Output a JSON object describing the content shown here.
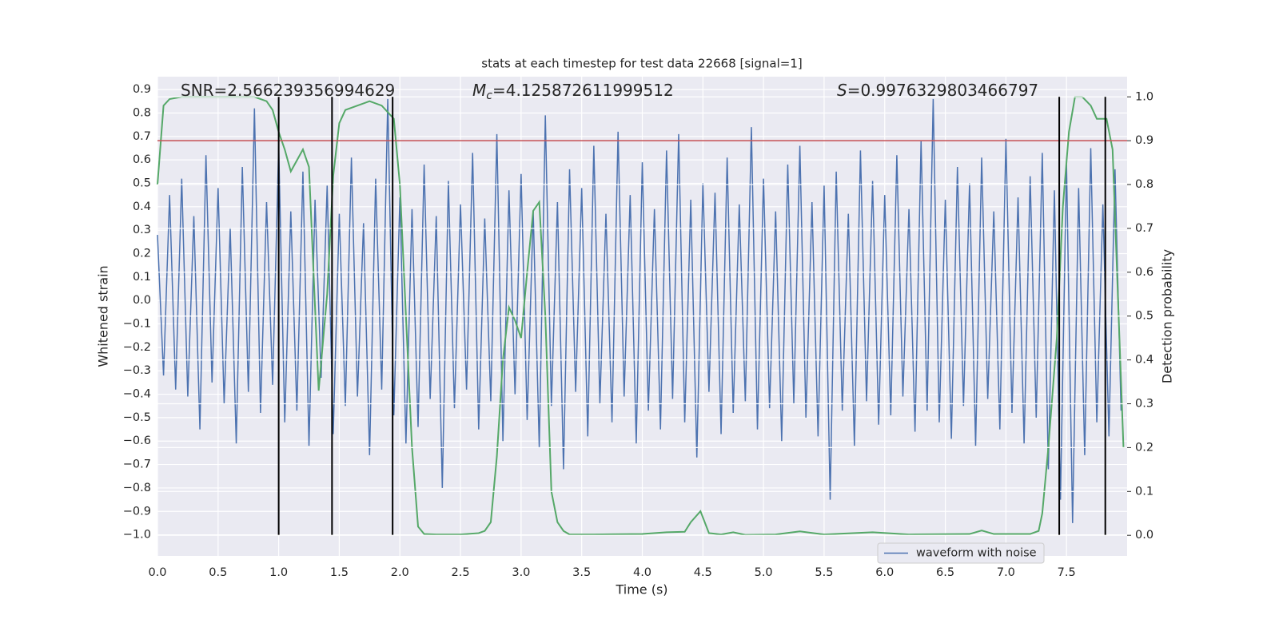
{
  "chart_data": {
    "type": "line",
    "title": "stats at each timestep for test data 22668 [signal=1]",
    "xlabel": "Time (s)",
    "ylabel": "Whitened strain",
    "y2label": "Detection probability",
    "xlim": [
      0,
      8.0
    ],
    "ylim": [
      -1.09,
      0.955
    ],
    "y2lim": [
      -0.047,
      1.046
    ],
    "xticks": [
      {
        "value": 0,
        "label": "0.0"
      },
      0.5,
      {
        "value": 1,
        "label": "1.0"
      },
      1.5,
      {
        "value": 2,
        "label": "2.0"
      },
      2.5,
      {
        "value": 3,
        "label": "3.0"
      },
      3.5,
      {
        "value": 4,
        "label": "4.0"
      },
      4.5,
      {
        "value": 5,
        "label": "5.0"
      },
      5.5,
      {
        "value": 6,
        "label": "6.0"
      },
      6.5,
      {
        "value": 7,
        "label": "7.0"
      },
      7.5
    ],
    "yticks": [
      {
        "value": -1,
        "label": "−1.0"
      },
      {
        "value": -0.9,
        "label": "−0.9"
      },
      {
        "value": -0.8,
        "label": "−0.8"
      },
      {
        "value": -0.7,
        "label": "−0.7"
      },
      {
        "value": -0.6,
        "label": "−0.6"
      },
      {
        "value": -0.5,
        "label": "−0.5"
      },
      {
        "value": -0.4,
        "label": "−0.4"
      },
      {
        "value": -0.3,
        "label": "−0.3"
      },
      {
        "value": -0.2,
        "label": "−0.2"
      },
      {
        "value": -0.1,
        "label": "−0.1"
      },
      {
        "value": 0,
        "label": "0.0"
      },
      0.1,
      0.2,
      0.3,
      0.4,
      0.5,
      0.6,
      0.7,
      0.8,
      0.9
    ],
    "y2ticks": [
      {
        "value": 0,
        "label": "0.0"
      },
      0.1,
      0.2,
      0.3,
      0.4,
      0.5,
      0.6,
      0.7,
      0.8,
      0.9,
      {
        "value": 1,
        "label": "1.0"
      }
    ],
    "grid": true,
    "legend": "lower right",
    "annotations": [
      [
        {
          "text": "SNR=2.566239356994629"
        }
      ],
      [
        {
          "text": "M",
          "style": "italic"
        },
        {
          "text": "c",
          "style": "sub"
        },
        {
          "text": "=4.125872611999512"
        }
      ],
      [
        {
          "text": "S",
          "style": "italic"
        },
        {
          "text": "=0.9976329803466797"
        }
      ]
    ],
    "vlines": {
      "color": "#000000",
      "x": [
        1.0,
        1.44,
        1.94,
        7.44,
        7.82
      ]
    },
    "hlines": [
      {
        "value": 0.9,
        "axis": "y2",
        "color": "#c44e52"
      }
    ],
    "series": [
      {
        "name": "waveform with noise",
        "color": "#4c72b0",
        "x": [
          0,
          0.05,
          0.1,
          0.15,
          0.2,
          0.25,
          0.3,
          0.35,
          0.4,
          0.45,
          0.5,
          0.55,
          0.6,
          0.65,
          0.7,
          0.75,
          0.8,
          0.85,
          0.9,
          0.95,
          1,
          1.05,
          1.1,
          1.15,
          1.2,
          1.25,
          1.3,
          1.35,
          1.4,
          1.45,
          1.5,
          1.55,
          1.6,
          1.65,
          1.7,
          1.75,
          1.8,
          1.85,
          1.9,
          1.95,
          2,
          2.05,
          2.1,
          2.15,
          2.2,
          2.25,
          2.3,
          2.35,
          2.4,
          2.45,
          2.5,
          2.55,
          2.6,
          2.65,
          2.7,
          2.75,
          2.8,
          2.85,
          2.9,
          2.95,
          3,
          3.05,
          3.1,
          3.15,
          3.2,
          3.25,
          3.3,
          3.35,
          3.4,
          3.45,
          3.5,
          3.55,
          3.6,
          3.65,
          3.7,
          3.75,
          3.8,
          3.85,
          3.9,
          3.95,
          4,
          4.05,
          4.1,
          4.15,
          4.2,
          4.25,
          4.3,
          4.35,
          4.4,
          4.45,
          4.5,
          4.55,
          4.6,
          4.65,
          4.7,
          4.75,
          4.8,
          4.85,
          4.9,
          4.95,
          5,
          5.05,
          5.1,
          5.15,
          5.2,
          5.25,
          5.3,
          5.35,
          5.4,
          5.45,
          5.5,
          5.55,
          5.6,
          5.65,
          5.7,
          5.75,
          5.8,
          5.85,
          5.9,
          5.95,
          6,
          6.05,
          6.1,
          6.15,
          6.2,
          6.25,
          6.3,
          6.35,
          6.4,
          6.45,
          6.5,
          6.55,
          6.6,
          6.65,
          6.7,
          6.75,
          6.8,
          6.85,
          6.9,
          6.95,
          7,
          7.05,
          7.1,
          7.15,
          7.2,
          7.25,
          7.3,
          7.35,
          7.4,
          7.45,
          7.5,
          7.55,
          7.6,
          7.65,
          7.7,
          7.75,
          7.8,
          7.85,
          7.9,
          7.95
        ],
        "values": [
          0.28,
          -0.32,
          0.45,
          -0.38,
          0.52,
          -0.41,
          0.36,
          -0.55,
          0.62,
          -0.35,
          0.48,
          -0.44,
          0.31,
          -0.61,
          0.57,
          -0.39,
          0.82,
          -0.48,
          0.42,
          -0.36,
          0.66,
          -0.52,
          0.38,
          -0.47,
          0.55,
          -0.62,
          0.43,
          -0.33,
          0.49,
          -0.57,
          0.37,
          -0.45,
          0.61,
          -0.41,
          0.33,
          -0.66,
          0.52,
          -0.38,
          0.86,
          -0.49,
          0.44,
          -0.61,
          0.39,
          -0.54,
          0.58,
          -0.42,
          0.36,
          -0.8,
          0.51,
          -0.46,
          0.41,
          -0.38,
          0.63,
          -0.55,
          0.35,
          -0.43,
          0.71,
          -0.6,
          0.47,
          -0.4,
          0.54,
          -0.51,
          0.38,
          -0.63,
          0.79,
          -0.45,
          0.42,
          -0.72,
          0.56,
          -0.39,
          0.48,
          -0.58,
          0.66,
          -0.44,
          0.37,
          -0.52,
          0.72,
          -0.41,
          0.45,
          -0.61,
          0.59,
          -0.47,
          0.39,
          -0.55,
          0.64,
          -0.42,
          0.71,
          -0.52,
          0.43,
          -0.67,
          0.5,
          -0.39,
          0.46,
          -0.57,
          0.61,
          -0.48,
          0.41,
          -0.43,
          0.74,
          -0.55,
          0.52,
          -0.46,
          0.38,
          -0.6,
          0.58,
          -0.44,
          0.66,
          -0.5,
          0.42,
          -0.58,
          0.49,
          -0.85,
          0.55,
          -0.47,
          0.37,
          -0.62,
          0.64,
          -0.43,
          0.51,
          -0.53,
          0.45,
          -0.49,
          0.62,
          -0.41,
          0.39,
          -0.56,
          0.68,
          -0.47,
          0.86,
          -0.52,
          0.43,
          -0.59,
          0.57,
          -0.45,
          0.5,
          -0.62,
          0.61,
          -0.42,
          0.38,
          -0.55,
          0.69,
          -0.48,
          0.44,
          -0.61,
          0.53,
          -0.5,
          0.63,
          -0.72,
          0.47,
          -0.85,
          0.58,
          -0.95,
          0.48,
          -0.66,
          0.65,
          -0.52,
          0.41,
          -0.58,
          0.56,
          -0.47
        ]
      },
      {
        "color": "#55a868",
        "axis": "y2",
        "x": [
          0,
          0.05,
          0.1,
          0.2,
          0.5,
          0.8,
          0.9,
          0.95,
          1.0,
          1.05,
          1.1,
          1.2,
          1.25,
          1.3,
          1.33,
          1.4,
          1.45,
          1.5,
          1.55,
          1.65,
          1.75,
          1.85,
          1.95,
          2.0,
          2.05,
          2.1,
          2.15,
          2.2,
          2.3,
          2.5,
          2.65,
          2.7,
          2.75,
          2.8,
          2.85,
          2.9,
          2.95,
          3.0,
          3.05,
          3.1,
          3.15,
          3.2,
          3.25,
          3.3,
          3.35,
          3.4,
          3.6,
          4.0,
          4.2,
          4.35,
          4.4,
          4.48,
          4.55,
          4.65,
          4.75,
          4.85,
          5.1,
          5.3,
          5.5,
          5.9,
          6.2,
          6.7,
          6.8,
          6.9,
          7.2,
          7.27,
          7.3,
          7.35,
          7.42,
          7.47,
          7.52,
          7.57,
          7.63,
          7.7,
          7.75,
          7.83,
          7.88,
          7.93,
          7.97
        ],
        "values": [
          0.8,
          0.98,
          0.995,
          1.0,
          1.0,
          1.0,
          0.99,
          0.97,
          0.92,
          0.88,
          0.83,
          0.88,
          0.84,
          0.52,
          0.33,
          0.55,
          0.82,
          0.94,
          0.97,
          0.98,
          0.99,
          0.98,
          0.95,
          0.8,
          0.5,
          0.2,
          0.02,
          0.003,
          0.002,
          0.002,
          0.005,
          0.01,
          0.03,
          0.18,
          0.4,
          0.52,
          0.49,
          0.45,
          0.6,
          0.74,
          0.76,
          0.5,
          0.1,
          0.03,
          0.01,
          0.002,
          0.002,
          0.003,
          0.007,
          0.008,
          0.03,
          0.055,
          0.005,
          0.002,
          0.007,
          0.001,
          0.002,
          0.009,
          0.002,
          0.007,
          0.002,
          0.003,
          0.011,
          0.003,
          0.003,
          0.01,
          0.05,
          0.2,
          0.45,
          0.75,
          0.92,
          1.0,
          1.0,
          0.98,
          0.95,
          0.95,
          0.88,
          0.5,
          0.2
        ]
      }
    ]
  }
}
